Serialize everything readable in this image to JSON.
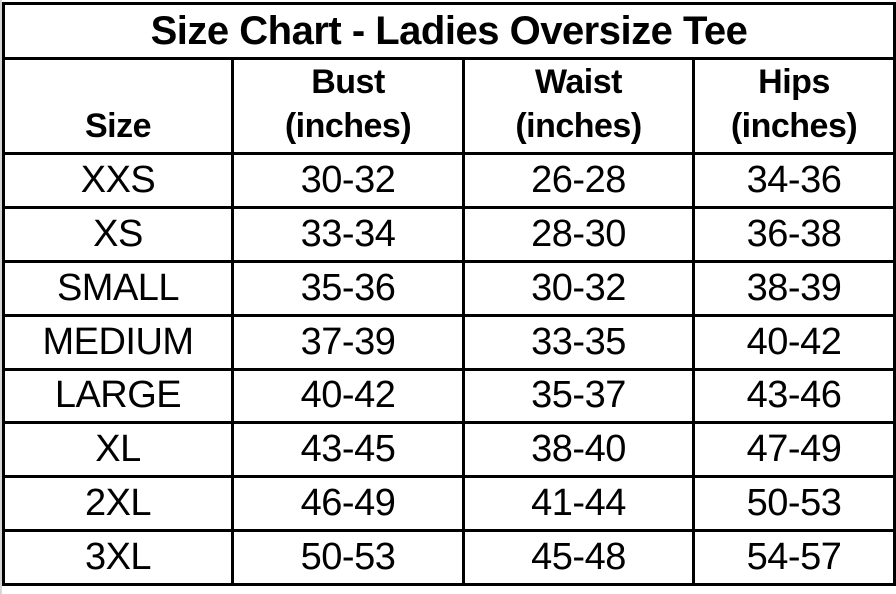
{
  "colors": {
    "text": "#000000",
    "background": "#ffffff",
    "border": "#000000",
    "page_edge": "#d6d6d6"
  },
  "header": {
    "col1": "Size",
    "col2_name": "Bust",
    "col2_unit": "(inches)",
    "col3_name": "Waist",
    "col3_unit": "(inches)",
    "col4_name": "Hips",
    "col4_unit": "(inches)"
  },
  "chart_data": {
    "type": "table",
    "title": "Size Chart - Ladies Oversize Tee",
    "columns": [
      "Size",
      "Bust (inches)",
      "Waist (inches)",
      "Hips (inches)"
    ],
    "rows": [
      [
        "XXS",
        "30-32",
        "26-28",
        "34-36"
      ],
      [
        "XS",
        "33-34",
        "28-30",
        "36-38"
      ],
      [
        "SMALL",
        "35-36",
        "30-32",
        "38-39"
      ],
      [
        "MEDIUM",
        "37-39",
        "33-35",
        "40-42"
      ],
      [
        "LARGE",
        "40-42",
        "35-37",
        "43-46"
      ],
      [
        "XL",
        "43-45",
        "38-40",
        "47-49"
      ],
      [
        "2XL",
        "46-49",
        "41-44",
        "50-53"
      ],
      [
        "3XL",
        "50-53",
        "45-48",
        "54-57"
      ]
    ]
  }
}
